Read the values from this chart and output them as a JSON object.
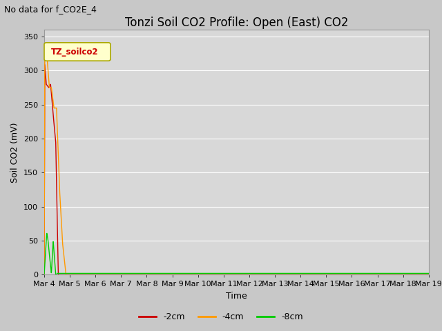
{
  "title": "Tonzi Soil CO2 Profile: Open (East) CO2",
  "subtitle": "No data for f_CO2E_4",
  "ylabel": "Soil CO2 (mV)",
  "xlabel": "Time",
  "ylim": [
    0,
    360
  ],
  "yticks": [
    0,
    50,
    100,
    150,
    200,
    250,
    300,
    350
  ],
  "legend_label": "TZ_soilco2",
  "legend_color": "#ffffcc",
  "legend_border": "#aaa800",
  "series": [
    {
      "label": "-2cm",
      "color": "#cc0000"
    },
    {
      "label": "-4cm",
      "color": "#ff9900"
    },
    {
      "label": "-8cm",
      "color": "#00cc00"
    }
  ],
  "fig_bg_color": "#c8c8c8",
  "plot_bg_color": "#d8d8d8",
  "grid_color": "#ffffff",
  "title_fontsize": 12,
  "subtitle_fontsize": 9,
  "axis_fontsize": 9,
  "tick_fontsize": 8,
  "legend_fontsize": 9,
  "tick_labels": [
    "Mar 4",
    "Mar 5",
    "Mar 6",
    "Mar 7",
    "Mar 8",
    "Mar 9",
    "Mar 10",
    "Mar 11",
    "Mar 12",
    "Mar 13",
    "Mar 14",
    "Mar 15",
    "Mar 16",
    "Mar 17",
    "Mar 18",
    "Mar 19"
  ],
  "tick_positions": [
    0,
    1,
    2,
    3,
    4,
    5,
    6,
    7,
    8,
    9,
    10,
    11,
    12,
    13,
    14,
    15
  ]
}
